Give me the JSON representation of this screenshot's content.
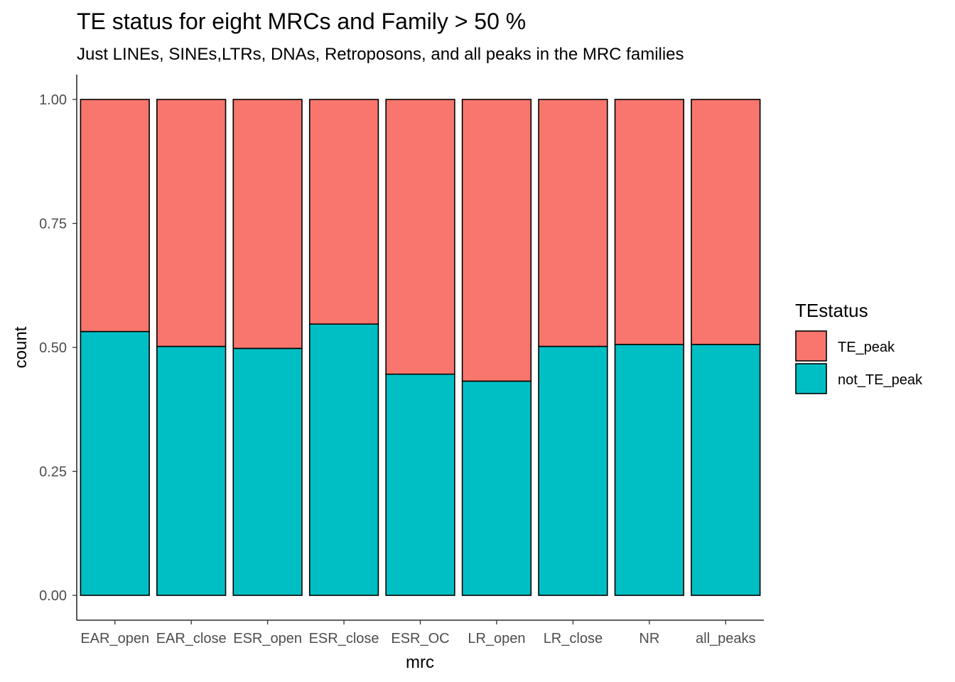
{
  "chart_data": {
    "type": "bar",
    "stacked": true,
    "title": "TE status for eight MRCs and Family > 50 %",
    "subtitle": "Just LINEs, SINEs,LTRs, DNAs, Retroposons, and all peaks in the MRC families",
    "xlabel": "mrc",
    "ylabel": "count",
    "ylim": [
      0,
      1
    ],
    "yticks": [
      "0.00",
      "0.25",
      "0.50",
      "0.75",
      "1.00"
    ],
    "ytick_values": [
      0,
      0.25,
      0.5,
      0.75,
      1
    ],
    "categories": [
      "EAR_open",
      "EAR_close",
      "ESR_open",
      "ESR_close",
      "ESR_OC",
      "LR_open",
      "LR_close",
      "NR",
      "all_peaks"
    ],
    "legend": {
      "title": "TEstatus",
      "position": "right"
    },
    "series": [
      {
        "name": "not_TE_peak",
        "color": "#00BFC4",
        "values": [
          0.532,
          0.502,
          0.498,
          0.547,
          0.446,
          0.432,
          0.502,
          0.506,
          0.506
        ]
      },
      {
        "name": "TE_peak",
        "color": "#F8766D",
        "values": [
          0.468,
          0.498,
          0.502,
          0.453,
          0.554,
          0.568,
          0.498,
          0.494,
          0.494
        ]
      }
    ],
    "legend_order": [
      "TE_peak",
      "not_TE_peak"
    ],
    "grid": false
  }
}
